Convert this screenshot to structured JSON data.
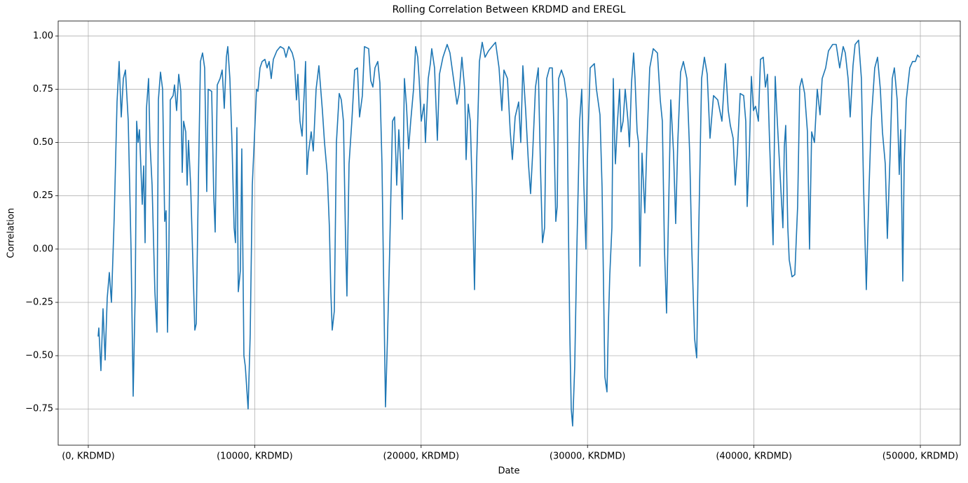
{
  "chart_data": {
    "type": "line",
    "title": "Rolling Correlation Between KRDMD and EREGL",
    "xlabel": "Date",
    "ylabel": "Correlation",
    "color": "#1f77b4",
    "grid": true,
    "xlim": [
      -1810,
      52400
    ],
    "ylim": [
      -0.92,
      1.07
    ],
    "xticks": [
      {
        "value": 0,
        "label": "(0, KRDMD)"
      },
      {
        "value": 10000,
        "label": "(10000, KRDMD)"
      },
      {
        "value": 20000,
        "label": "(20000, KRDMD)"
      },
      {
        "value": 30000,
        "label": "(30000, KRDMD)"
      },
      {
        "value": 40000,
        "label": "(40000, KRDMD)"
      },
      {
        "value": 50000,
        "label": "(50000, KRDMD)"
      }
    ],
    "yticks": [
      {
        "value": -0.75,
        "label": "−0.75"
      },
      {
        "value": -0.5,
        "label": "−0.50"
      },
      {
        "value": -0.25,
        "label": "−0.25"
      },
      {
        "value": 0,
        "label": "0.00"
      },
      {
        "value": 0.25,
        "label": "0.25"
      },
      {
        "value": 0.5,
        "label": "0.50"
      },
      {
        "value": 0.75,
        "label": "0.75"
      },
      {
        "value": 1,
        "label": "1.00"
      }
    ],
    "x": [
      590,
      632,
      758,
      885,
      1011,
      1137,
      1264,
      1390,
      1558,
      1727,
      1853,
      1980,
      2106,
      2232,
      2401,
      2569,
      2696,
      2822,
      2906,
      2991,
      3075,
      3243,
      3327,
      3412,
      3496,
      3622,
      3707,
      3833,
      4001,
      4128,
      4212,
      4338,
      4465,
      4591,
      4675,
      4760,
      4844,
      4928,
      5097,
      5181,
      5307,
      5433,
      5560,
      5644,
      5728,
      5855,
      5939,
      6023,
      6150,
      6276,
      6402,
      6486,
      6613,
      6739,
      6866,
      6992,
      7118,
      7203,
      7413,
      7539,
      7624,
      7750,
      7919,
      8045,
      8171,
      8298,
      8382,
      8508,
      8635,
      8761,
      8845,
      8929,
      9014,
      9140,
      9224,
      9351,
      9435,
      9603,
      9730,
      9856,
      10025,
      10109,
      10193,
      10319,
      10446,
      10614,
      10741,
      10867,
      10993,
      11120,
      11330,
      11541,
      11751,
      11878,
      12046,
      12257,
      12383,
      12510,
      12594,
      12720,
      12847,
      12973,
      13057,
      13141,
      13226,
      13394,
      13521,
      13689,
      13857,
      14068,
      14194,
      14363,
      14489,
      14574,
      14658,
      14784,
      14910,
      15079,
      15205,
      15332,
      15458,
      15542,
      15669,
      15837,
      16006,
      16174,
      16300,
      16469,
      16595,
      16848,
      16974,
      17101,
      17227,
      17396,
      17522,
      17648,
      17775,
      17859,
      17985,
      18112,
      18280,
      18406,
      18533,
      18659,
      18786,
      18870,
      18996,
      19122,
      19249,
      19375,
      19544,
      19670,
      19796,
      19880,
      20007,
      20175,
      20260,
      20428,
      20555,
      20639,
      20807,
      20976,
      21102,
      21313,
      21565,
      21734,
      21945,
      22155,
      22281,
      22450,
      22618,
      22703,
      22829,
      22955,
      23082,
      23208,
      23334,
      23503,
      23671,
      23840,
      24051,
      24261,
      24472,
      24683,
      24851,
      24977,
      25188,
      25356,
      25483,
      25651,
      25862,
      25988,
      26114,
      26283,
      26451,
      26578,
      26704,
      26873,
      27041,
      27167,
      27294,
      27420,
      27547,
      27715,
      27883,
      27967,
      28094,
      28178,
      28262,
      28431,
      28599,
      28768,
      28852,
      28936,
      29021,
      29105,
      29231,
      29358,
      29526,
      29653,
      29779,
      29905,
      29990,
      30158,
      30411,
      30537,
      30748,
      30874,
      31043,
      31169,
      31253,
      31338,
      31464,
      31548,
      31632,
      31675,
      31801,
      31927,
      32011,
      32138,
      32264,
      32432,
      32517,
      32643,
      32769,
      32854,
      32980,
      33064,
      33148,
      33275,
      33443,
      33570,
      33738,
      33949,
      34201,
      34370,
      34496,
      34623,
      34749,
      34875,
      35002,
      35170,
      35297,
      35423,
      35591,
      35760,
      35970,
      36139,
      36265,
      36434,
      36560,
      36686,
      36855,
      37023,
      37192,
      37360,
      37571,
      37824,
      38076,
      38287,
      38456,
      38582,
      38750,
      38877,
      39003,
      39172,
      39382,
      39509,
      39593,
      39719,
      39846,
      39972,
      40098,
      40267,
      40393,
      40562,
      40688,
      40814,
      40941,
      41151,
      41278,
      41404,
      41572,
      41741,
      41825,
      41909,
      42036,
      42120,
      42288,
      42457,
      42625,
      42752,
      42878,
      43047,
      43215,
      43341,
      43468,
      43636,
      43805,
      43973,
      44100,
      44310,
      44479,
      44731,
      44942,
      45153,
      45363,
      45490,
      45658,
      45784,
      45953,
      46079,
      46290,
      46458,
      46585,
      46753,
      46922,
      47048,
      47259,
      47427,
      47596,
      47722,
      47891,
      48017,
      48185,
      48312,
      48438,
      48607,
      48733,
      48817,
      48944,
      49028,
      49154,
      49365,
      49533,
      49702,
      49828,
      49955
    ],
    "values": [
      -0.41,
      -0.37,
      -0.57,
      -0.28,
      -0.52,
      -0.23,
      -0.11,
      -0.25,
      0.15,
      0.69,
      0.88,
      0.62,
      0.8,
      0.84,
      0.6,
      0.0,
      -0.69,
      -0.2,
      0.6,
      0.5,
      0.56,
      0.21,
      0.39,
      0.03,
      0.66,
      0.8,
      0.5,
      0.3,
      -0.2,
      -0.39,
      0.7,
      0.83,
      0.75,
      0.13,
      0.18,
      -0.39,
      0.0,
      0.7,
      0.72,
      0.77,
      0.65,
      0.82,
      0.74,
      0.36,
      0.6,
      0.55,
      0.3,
      0.51,
      0.3,
      -0.04,
      -0.38,
      -0.35,
      0.3,
      0.88,
      0.92,
      0.85,
      0.27,
      0.75,
      0.74,
      0.25,
      0.08,
      0.77,
      0.8,
      0.84,
      0.66,
      0.9,
      0.95,
      0.8,
      0.5,
      0.1,
      0.03,
      0.57,
      -0.2,
      -0.1,
      0.47,
      -0.5,
      -0.55,
      -0.75,
      -0.4,
      0.3,
      0.6,
      0.75,
      0.74,
      0.85,
      0.88,
      0.89,
      0.85,
      0.88,
      0.8,
      0.89,
      0.93,
      0.95,
      0.94,
      0.9,
      0.95,
      0.92,
      0.88,
      0.7,
      0.82,
      0.6,
      0.53,
      0.73,
      0.88,
      0.35,
      0.45,
      0.55,
      0.46,
      0.75,
      0.86,
      0.65,
      0.5,
      0.35,
      0.1,
      -0.2,
      -0.38,
      -0.29,
      0.5,
      0.73,
      0.7,
      0.6,
      0.05,
      -0.22,
      0.4,
      0.6,
      0.84,
      0.85,
      0.62,
      0.72,
      0.95,
      0.94,
      0.79,
      0.76,
      0.85,
      0.88,
      0.78,
      0.4,
      -0.3,
      -0.74,
      -0.4,
      0.0,
      0.6,
      0.62,
      0.3,
      0.56,
      0.38,
      0.14,
      0.8,
      0.67,
      0.47,
      0.6,
      0.75,
      0.95,
      0.9,
      0.8,
      0.6,
      0.68,
      0.5,
      0.8,
      0.87,
      0.94,
      0.85,
      0.51,
      0.82,
      0.9,
      0.96,
      0.92,
      0.8,
      0.68,
      0.73,
      0.9,
      0.75,
      0.42,
      0.68,
      0.6,
      0.25,
      -0.19,
      0.4,
      0.88,
      0.97,
      0.9,
      0.93,
      0.95,
      0.97,
      0.85,
      0.65,
      0.84,
      0.8,
      0.55,
      0.42,
      0.62,
      0.69,
      0.5,
      0.86,
      0.65,
      0.4,
      0.26,
      0.45,
      0.76,
      0.85,
      0.4,
      0.03,
      0.1,
      0.8,
      0.85,
      0.85,
      0.6,
      0.13,
      0.2,
      0.8,
      0.84,
      0.8,
      0.7,
      0.1,
      -0.4,
      -0.75,
      -0.83,
      -0.55,
      0.0,
      0.6,
      0.75,
      0.3,
      0.0,
      0.42,
      0.85,
      0.87,
      0.75,
      0.63,
      0.29,
      -0.6,
      -0.67,
      -0.35,
      -0.12,
      0.1,
      0.8,
      0.5,
      0.4,
      0.6,
      0.75,
      0.55,
      0.6,
      0.75,
      0.6,
      0.48,
      0.78,
      0.92,
      0.8,
      0.55,
      0.5,
      -0.08,
      0.45,
      0.17,
      0.5,
      0.85,
      0.94,
      0.92,
      0.7,
      0.6,
      0.0,
      -0.3,
      0.2,
      0.7,
      0.45,
      0.12,
      0.5,
      0.83,
      0.88,
      0.8,
      0.45,
      0.0,
      -0.42,
      -0.51,
      0.1,
      0.8,
      0.9,
      0.82,
      0.52,
      0.72,
      0.7,
      0.6,
      0.87,
      0.65,
      0.58,
      0.52,
      0.3,
      0.45,
      0.73,
      0.72,
      0.6,
      0.2,
      0.45,
      0.81,
      0.65,
      0.67,
      0.6,
      0.89,
      0.9,
      0.76,
      0.82,
      0.5,
      0.02,
      0.81,
      0.6,
      0.35,
      0.1,
      0.48,
      0.58,
      0.1,
      -0.05,
      -0.13,
      -0.12,
      0.2,
      0.76,
      0.8,
      0.73,
      0.55,
      0.0,
      0.55,
      0.5,
      0.75,
      0.63,
      0.8,
      0.85,
      0.93,
      0.96,
      0.96,
      0.85,
      0.95,
      0.92,
      0.8,
      0.62,
      0.86,
      0.96,
      0.98,
      0.8,
      0.3,
      -0.19,
      0.3,
      0.6,
      0.85,
      0.9,
      0.75,
      0.55,
      0.4,
      0.05,
      0.45,
      0.8,
      0.85,
      0.7,
      0.35,
      0.56,
      -0.15,
      0.4,
      0.7,
      0.85,
      0.88,
      0.88,
      0.91,
      0.9
    ]
  }
}
